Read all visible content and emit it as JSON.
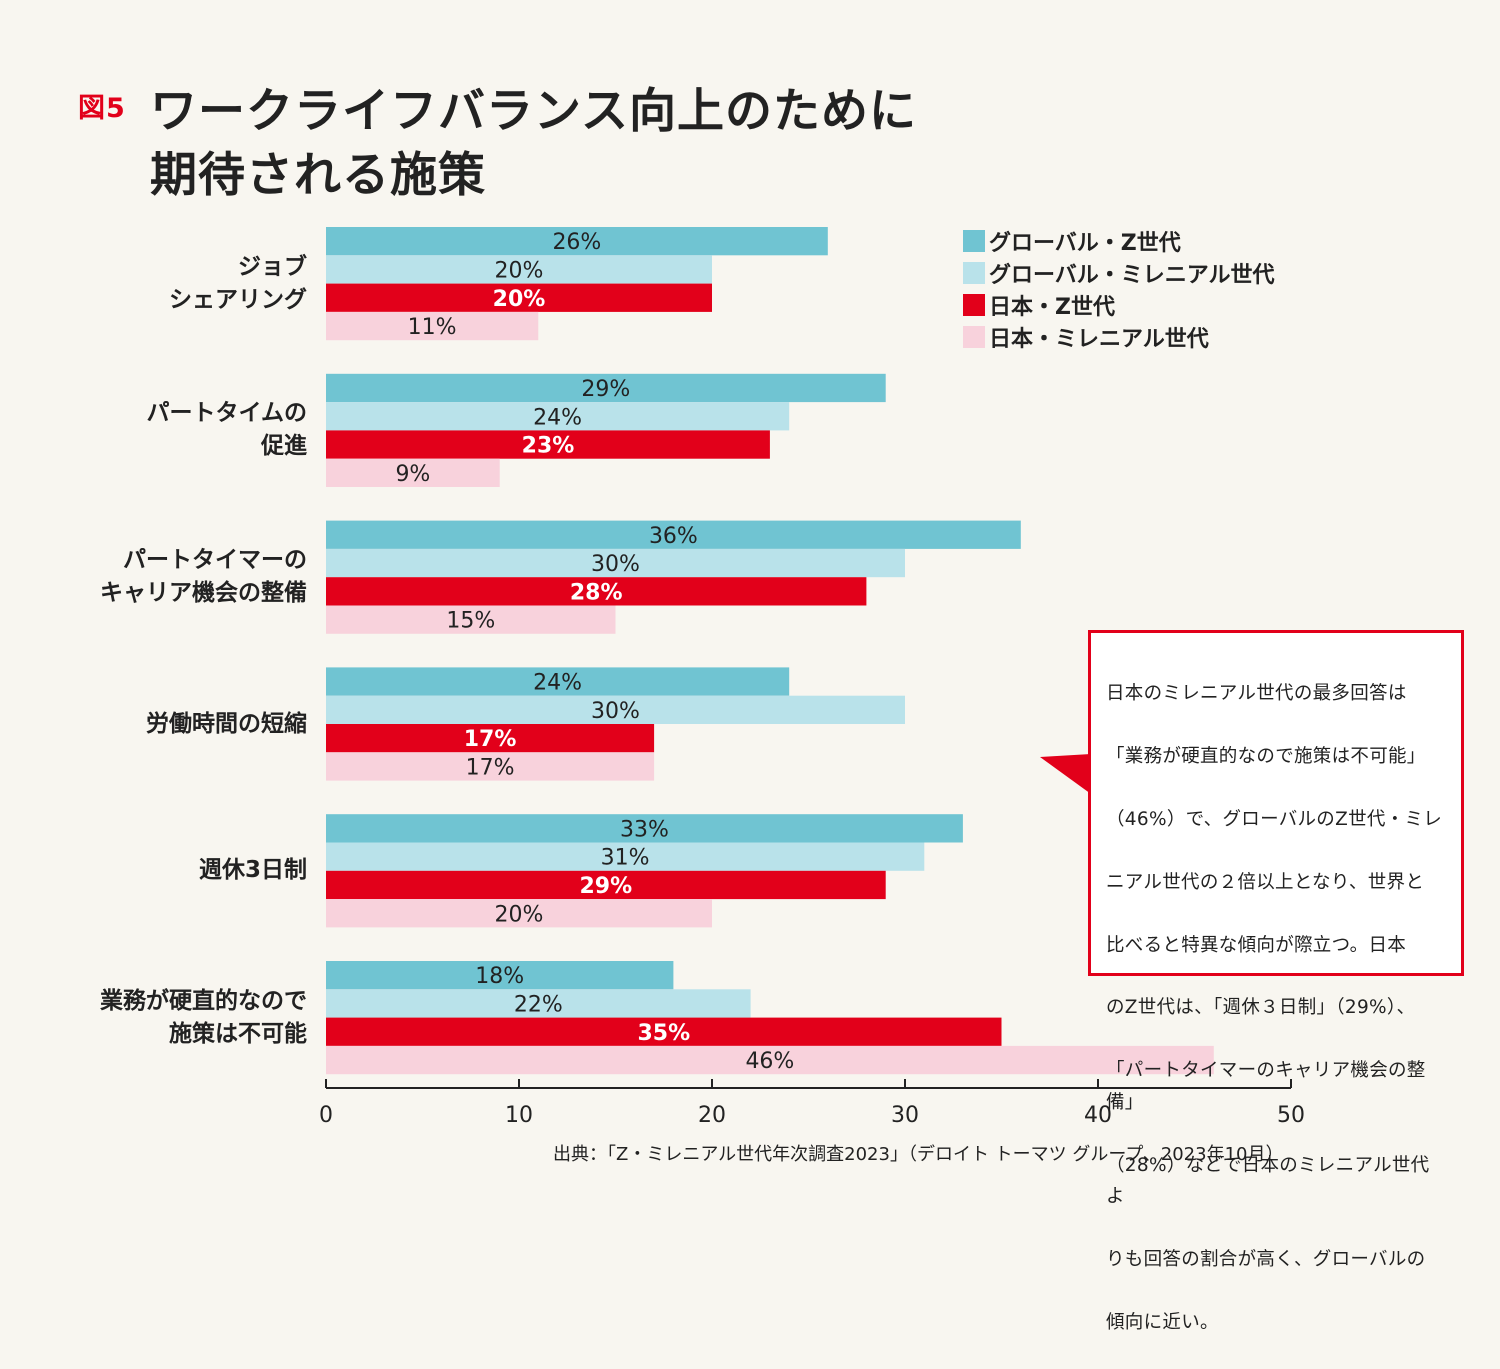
{
  "figure_label": "図5",
  "title_lines": [
    "ワークライフバランス向上のために",
    "期待される施策"
  ],
  "colors": {
    "global_z": "#70c4d2",
    "global_millennial": "#b9e2ea",
    "japan_z": "#e2001a",
    "japan_millennial": "#f8d2dc",
    "accent": "#e2001a"
  },
  "chart_data": {
    "type": "bar",
    "orientation": "horizontal",
    "categories": [
      "ジョブ\nシェアリング",
      "パートタイムの\n促進",
      "パートタイマーの\nキャリア機会の整備",
      "労働時間の短縮",
      "週休3日制",
      "業務が硬直的なので\n施策は不可能"
    ],
    "series": [
      {
        "name": "グローバル・Z世代",
        "color": "#70c4d2",
        "values": [
          26,
          29,
          36,
          24,
          33,
          18
        ],
        "labels": [
          "26%",
          "29%",
          "36%",
          "24%",
          "33%",
          "18%"
        ]
      },
      {
        "name": "グローバル・ミレニアル世代",
        "color": "#b9e2ea",
        "values": [
          20,
          24,
          30,
          30,
          31,
          22
        ],
        "labels": [
          "20%",
          "24%",
          "30%",
          "30%",
          "31%",
          "22%"
        ]
      },
      {
        "name": "日本・Z世代",
        "color": "#e2001a",
        "values": [
          20,
          23,
          28,
          17,
          29,
          35
        ],
        "labels": [
          "20%",
          "23%",
          "28%",
          "17%",
          "29%",
          "35%"
        ]
      },
      {
        "name": "日本・ミレニアル世代",
        "color": "#f8d2dc",
        "values": [
          11,
          9,
          15,
          17,
          20,
          46
        ],
        "labels": [
          "11%",
          "9%",
          "15%",
          "17%",
          "20%",
          "46%"
        ]
      }
    ],
    "xlim": [
      0,
      50
    ],
    "xticks": [
      "0",
      "10",
      "20",
      "30",
      "40",
      "50"
    ],
    "legend_position": "top-right",
    "grid": false
  },
  "callout": {
    "lines": [
      "日本のミレニアル世代の最多回答は",
      "「業務が硬直的なので施策は不可能」",
      "（46%）で、グローバルのZ世代・ミレ",
      "ニアル世代の２倍以上となり、世界と",
      "比べると特異な傾向が際立つ。日本",
      "のZ世代は、「週休３日制」（29%）、",
      "「パートタイマーのキャリア機会の整備」",
      "（28%）などで日本のミレニアル世代よ",
      "りも回答の割合が高く、グローバルの",
      "傾向に近い。"
    ]
  },
  "source": "出典：「Z・ミレニアル世代年次調査2023」（デロイト トーマツ グループ、2023年10月）"
}
